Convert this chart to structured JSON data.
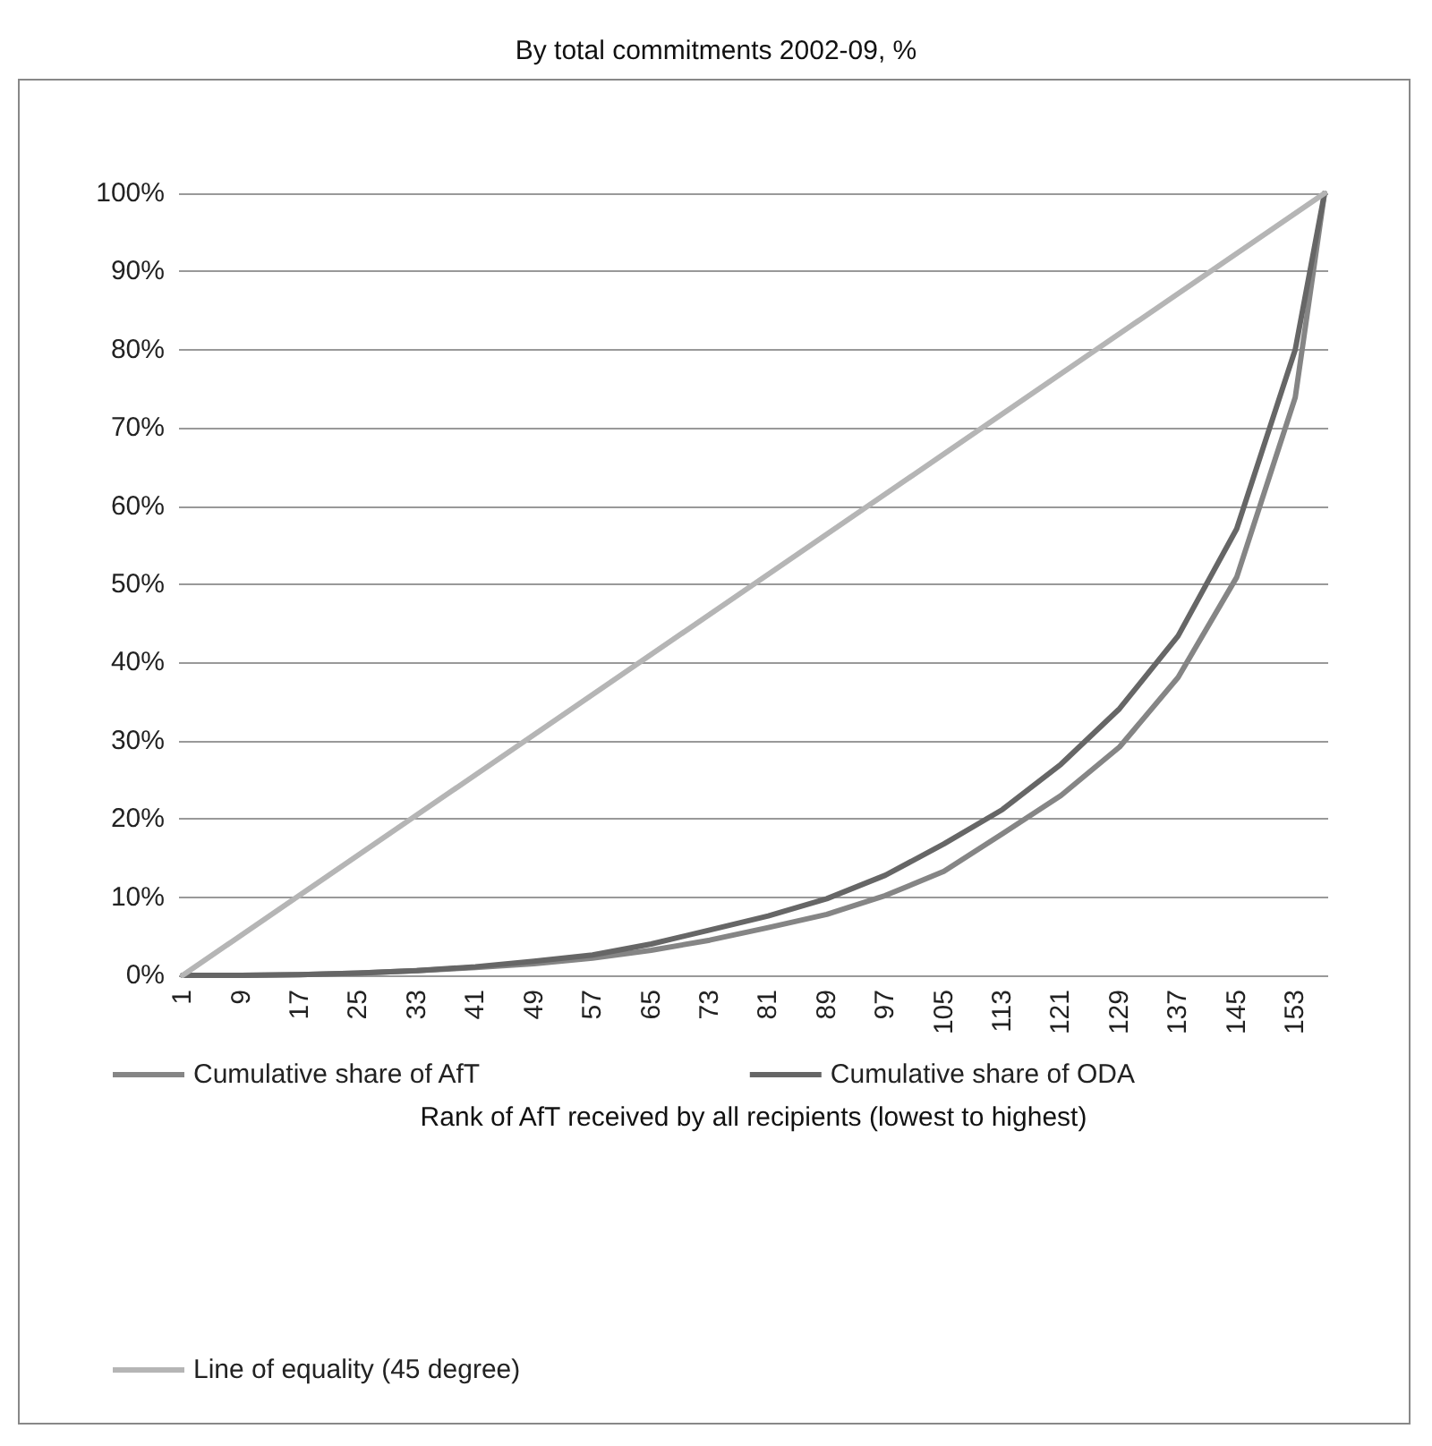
{
  "chart_data": {
    "type": "line",
    "title": "By total commitments 2002-09, %",
    "xlabel": "Rank of AfT received by all recipients (lowest to highest)",
    "x": [
      1,
      9,
      17,
      25,
      33,
      41,
      49,
      57,
      65,
      73,
      81,
      89,
      97,
      105,
      113,
      121,
      129,
      137,
      145,
      153,
      157
    ],
    "series": [
      {
        "name": "Cumulative share of AfT",
        "color": "#858585",
        "values": [
          0,
          0,
          0.1,
          0.3,
          0.6,
          1.0,
          1.5,
          2.2,
          3.2,
          4.5,
          6.1,
          7.8,
          10.2,
          13.3,
          18.1,
          23.0,
          29.2,
          38.1,
          50.9,
          73.9,
          100
        ]
      },
      {
        "name": "Cumulative share of ODA",
        "color": "#666666",
        "values": [
          0,
          0,
          0.1,
          0.3,
          0.6,
          1.1,
          1.8,
          2.6,
          4.0,
          5.8,
          7.6,
          9.8,
          12.8,
          16.8,
          21.2,
          27.0,
          34.1,
          43.4,
          57.1,
          80.0,
          100
        ]
      },
      {
        "name": "Line of equality (45 degree)",
        "color": "#b5b5b5",
        "x": [
          1,
          157
        ],
        "values": [
          0,
          100
        ]
      }
    ],
    "xlim": [
      0.5,
      157.5
    ],
    "xticks": [
      1,
      9,
      17,
      25,
      33,
      41,
      49,
      57,
      65,
      73,
      81,
      89,
      97,
      105,
      113,
      121,
      129,
      137,
      145,
      153
    ],
    "ylim": [
      0,
      100
    ],
    "yticks": [
      {
        "value": 0,
        "label": "0%"
      },
      {
        "value": 10,
        "label": "10%"
      },
      {
        "value": 20,
        "label": "20%"
      },
      {
        "value": 30,
        "label": "30%"
      },
      {
        "value": 40,
        "label": "40%"
      },
      {
        "value": 50,
        "label": "50%"
      },
      {
        "value": 60,
        "label": "60%"
      },
      {
        "value": 70,
        "label": "70%"
      },
      {
        "value": 80,
        "label": "80%"
      },
      {
        "value": 90,
        "label": "90%"
      },
      {
        "value": 100,
        "label": "100%"
      }
    ],
    "grid": "y",
    "legend": "bottom",
    "marker": "none",
    "line_style": "solid"
  }
}
